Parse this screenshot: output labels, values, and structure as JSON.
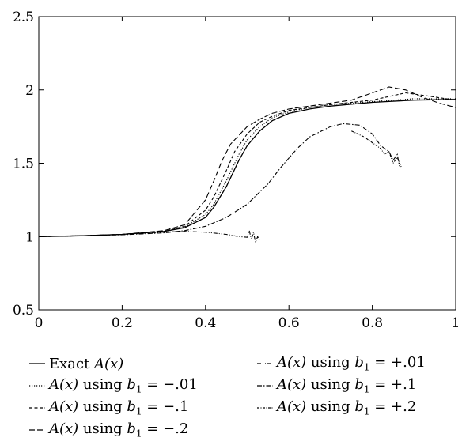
{
  "chart_data": {
    "type": "line",
    "title": "",
    "xlabel": "",
    "ylabel": "",
    "xlim": [
      0,
      1
    ],
    "ylim": [
      0.5,
      2.5
    ],
    "xticks": [
      0,
      0.2,
      0.4,
      0.6,
      0.8,
      1
    ],
    "xtick_labels": [
      "0",
      "0.2",
      "0.4",
      "0.6",
      "0.8",
      "1"
    ],
    "yticks": [
      0.5,
      1,
      1.5,
      2,
      2.5
    ],
    "ytick_labels": [
      "0.5",
      "1",
      "1.5",
      "2",
      "2.5"
    ],
    "grid": false,
    "legend_position": "bottom",
    "series": [
      {
        "name": "Exact A(x)",
        "dash": "solid",
        "points": [
          [
            0,
            1.0
          ],
          [
            0.1,
            1.005
          ],
          [
            0.2,
            1.015
          ],
          [
            0.3,
            1.035
          ],
          [
            0.35,
            1.06
          ],
          [
            0.4,
            1.13
          ],
          [
            0.42,
            1.2
          ],
          [
            0.45,
            1.34
          ],
          [
            0.48,
            1.52
          ],
          [
            0.5,
            1.62
          ],
          [
            0.53,
            1.72
          ],
          [
            0.56,
            1.79
          ],
          [
            0.6,
            1.84
          ],
          [
            0.65,
            1.87
          ],
          [
            0.7,
            1.89
          ],
          [
            0.8,
            1.915
          ],
          [
            0.9,
            1.93
          ],
          [
            1.0,
            1.935
          ]
        ]
      },
      {
        "name": "A(x) using b1 = −.01",
        "dash": "dotted",
        "points": [
          [
            0,
            1.0
          ],
          [
            0.1,
            1.005
          ],
          [
            0.2,
            1.015
          ],
          [
            0.3,
            1.035
          ],
          [
            0.35,
            1.065
          ],
          [
            0.4,
            1.15
          ],
          [
            0.42,
            1.22
          ],
          [
            0.45,
            1.38
          ],
          [
            0.48,
            1.56
          ],
          [
            0.5,
            1.66
          ],
          [
            0.53,
            1.75
          ],
          [
            0.56,
            1.81
          ],
          [
            0.6,
            1.85
          ],
          [
            0.65,
            1.88
          ],
          [
            0.7,
            1.9
          ],
          [
            0.8,
            1.92
          ],
          [
            0.9,
            1.94
          ],
          [
            1.0,
            1.94
          ]
        ]
      },
      {
        "name": "A(x) using b1 = −.1",
        "dash": "short-dash",
        "points": [
          [
            0,
            1.0
          ],
          [
            0.1,
            1.005
          ],
          [
            0.2,
            1.015
          ],
          [
            0.3,
            1.035
          ],
          [
            0.35,
            1.07
          ],
          [
            0.4,
            1.18
          ],
          [
            0.42,
            1.27
          ],
          [
            0.45,
            1.45
          ],
          [
            0.47,
            1.58
          ],
          [
            0.5,
            1.7
          ],
          [
            0.53,
            1.78
          ],
          [
            0.56,
            1.82
          ],
          [
            0.6,
            1.86
          ],
          [
            0.65,
            1.88
          ],
          [
            0.7,
            1.9
          ],
          [
            0.8,
            1.93
          ],
          [
            0.88,
            1.98
          ],
          [
            0.93,
            1.96
          ],
          [
            1.0,
            1.93
          ]
        ]
      },
      {
        "name": "A(x) using b1 = −.2",
        "dash": "long-dash",
        "points": [
          [
            0,
            1.0
          ],
          [
            0.1,
            1.005
          ],
          [
            0.2,
            1.015
          ],
          [
            0.3,
            1.04
          ],
          [
            0.35,
            1.08
          ],
          [
            0.4,
            1.25
          ],
          [
            0.42,
            1.38
          ],
          [
            0.44,
            1.52
          ],
          [
            0.46,
            1.63
          ],
          [
            0.5,
            1.75
          ],
          [
            0.53,
            1.8
          ],
          [
            0.56,
            1.84
          ],
          [
            0.6,
            1.87
          ],
          [
            0.65,
            1.89
          ],
          [
            0.7,
            1.91
          ],
          [
            0.75,
            1.93
          ],
          [
            0.8,
            1.98
          ],
          [
            0.84,
            2.02
          ],
          [
            0.88,
            2.0
          ],
          [
            0.92,
            1.95
          ],
          [
            0.96,
            1.91
          ],
          [
            1.0,
            1.88
          ]
        ]
      },
      {
        "name": "A(x) using b1 = +.01",
        "dash": "dash-dot-dot",
        "points": [
          [
            0,
            1.0
          ],
          [
            0.1,
            1.005
          ],
          [
            0.2,
            1.015
          ],
          [
            0.3,
            1.03
          ],
          [
            0.35,
            1.035
          ],
          [
            0.4,
            1.03
          ],
          [
            0.45,
            1.015
          ],
          [
            0.48,
            1.0
          ],
          [
            0.5,
            0.995
          ],
          [
            0.505,
            1.04
          ],
          [
            0.51,
            0.98
          ],
          [
            0.515,
            1.03
          ],
          [
            0.52,
            0.96
          ],
          [
            0.525,
            1.0
          ],
          [
            0.53,
            0.97
          ]
        ]
      },
      {
        "name": "A(x) using b1 = +.1",
        "dash": "dash-dot",
        "points": [
          [
            0,
            1.0
          ],
          [
            0.1,
            1.005
          ],
          [
            0.2,
            1.012
          ],
          [
            0.3,
            1.025
          ],
          [
            0.35,
            1.04
          ],
          [
            0.4,
            1.07
          ],
          [
            0.45,
            1.13
          ],
          [
            0.5,
            1.22
          ],
          [
            0.55,
            1.36
          ],
          [
            0.58,
            1.47
          ],
          [
            0.62,
            1.6
          ],
          [
            0.65,
            1.68
          ],
          [
            0.7,
            1.75
          ],
          [
            0.73,
            1.77
          ],
          [
            0.77,
            1.76
          ],
          [
            0.8,
            1.7
          ],
          [
            0.82,
            1.62
          ],
          [
            0.84,
            1.58
          ],
          [
            0.85,
            1.52
          ],
          [
            0.86,
            1.56
          ],
          [
            0.865,
            1.48
          ]
        ]
      },
      {
        "name": "A(x) using b1 = +.2",
        "dash": "dash-dot-dense",
        "points": [
          [
            0.75,
            1.72
          ],
          [
            0.78,
            1.68
          ],
          [
            0.8,
            1.64
          ],
          [
            0.82,
            1.6
          ],
          [
            0.83,
            1.56
          ],
          [
            0.84,
            1.58
          ],
          [
            0.85,
            1.5
          ],
          [
            0.86,
            1.54
          ],
          [
            0.87,
            1.47
          ]
        ]
      }
    ]
  },
  "legend": {
    "items": [
      {
        "id": "exact",
        "prefix": "Exact ",
        "func": "A(x)",
        "using": "",
        "sub": "",
        "value": ""
      },
      {
        "id": "m001",
        "prefix": "",
        "func": "A(x)",
        "using": " using ",
        "sub": "1",
        "value": " = −.01"
      },
      {
        "id": "m01",
        "prefix": "",
        "func": "A(x)",
        "using": " using ",
        "sub": "1",
        "value": " = −.1"
      },
      {
        "id": "m02",
        "prefix": "",
        "func": "A(x)",
        "using": " using ",
        "sub": "1",
        "value": " = −.2"
      },
      {
        "id": "p001",
        "prefix": "",
        "func": "A(x)",
        "using": " using ",
        "sub": "1",
        "value": " = +.01"
      },
      {
        "id": "p01",
        "prefix": "",
        "func": "A(x)",
        "using": " using ",
        "sub": "1",
        "value": " = +.1"
      },
      {
        "id": "p02",
        "prefix": "",
        "func": "A(x)",
        "using": " using ",
        "sub": "1",
        "value": " = +.2"
      }
    ]
  }
}
